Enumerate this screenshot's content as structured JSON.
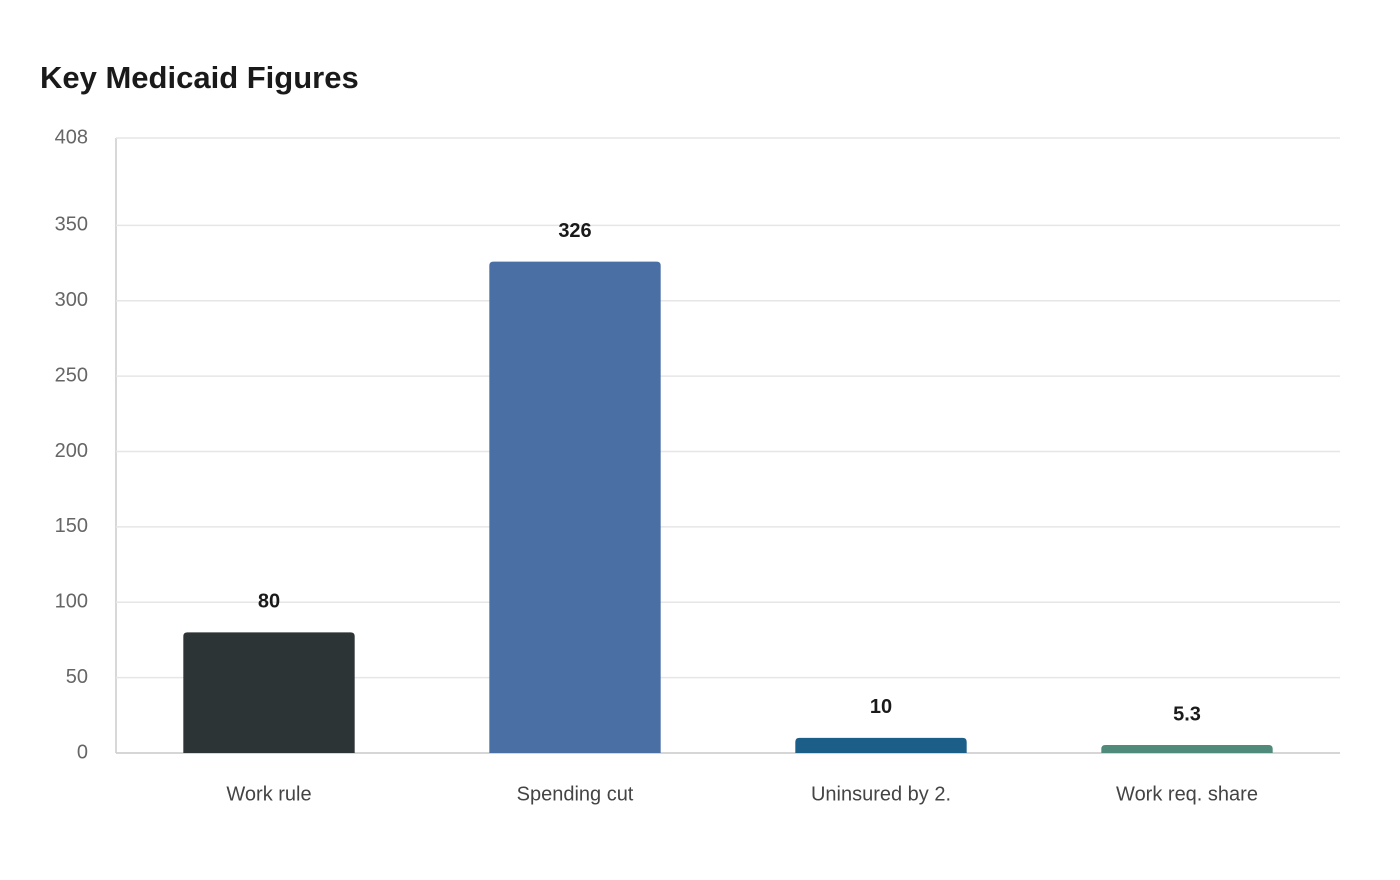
{
  "chart_data": {
    "type": "bar",
    "title": "Key Medicaid Figures",
    "categories": [
      "Work rule",
      "Spending cut",
      "Uninsured by 2.",
      "Work req. share"
    ],
    "values": [
      80,
      326,
      10,
      5.3
    ],
    "colors": [
      "#2d3436",
      "#4a6fa5",
      "#1b5e87",
      "#4f8a7a"
    ],
    "ylim": [
      0,
      408
    ],
    "yticks": [
      0,
      50,
      100,
      150,
      200,
      250,
      300,
      350,
      408
    ],
    "grid": true
  }
}
